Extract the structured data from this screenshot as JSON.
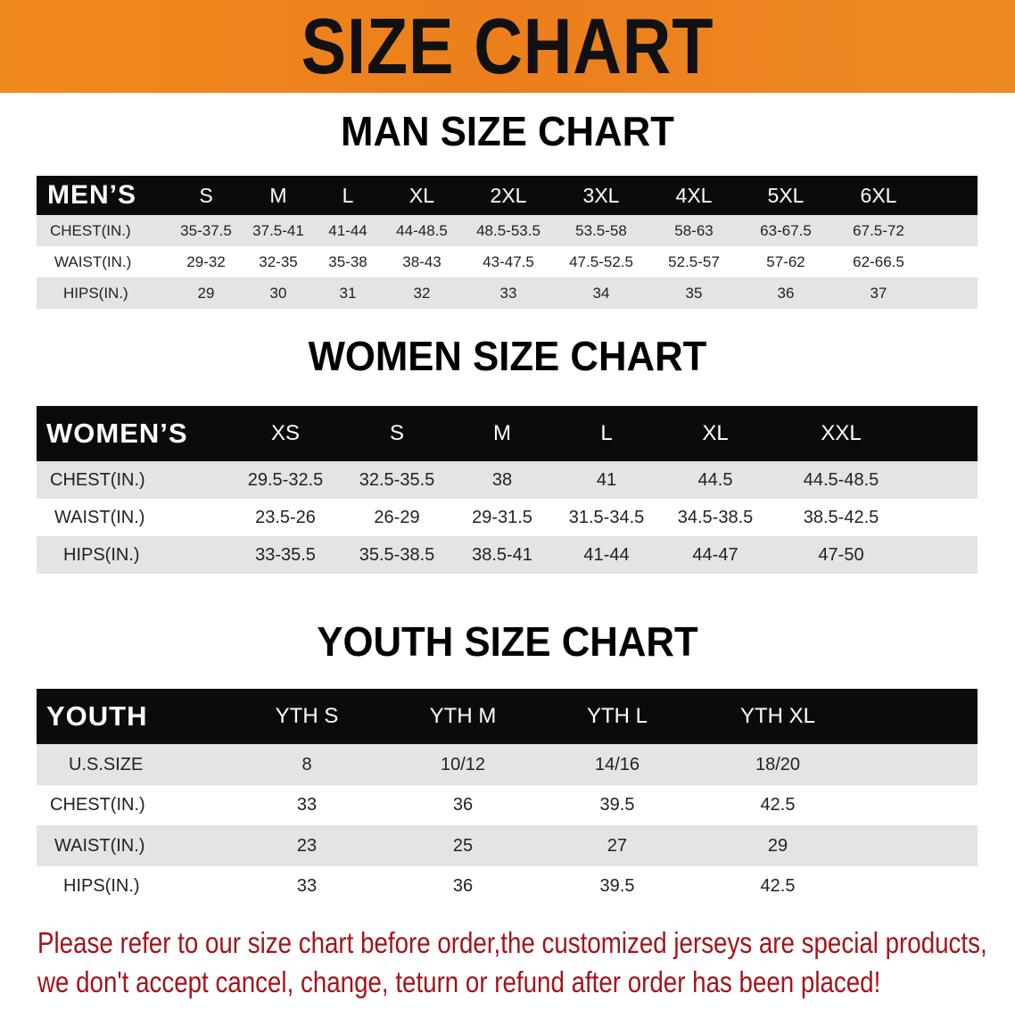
{
  "banner": {
    "title": "SIZE CHART",
    "color": "#ee841e"
  },
  "men": {
    "heading": "MAN SIZE CHART",
    "header": [
      "MEN’S",
      "S",
      "M",
      "L",
      "XL",
      "2XL",
      "3XL",
      "4XL",
      "5XL",
      "6XL"
    ],
    "rows": [
      [
        "CHEST(IN.)",
        "35-37.5",
        "37.5-41",
        "41-44",
        "44-48.5",
        "48.5-53.5",
        "53.5-58",
        "58-63",
        "63-67.5",
        "67.5-72"
      ],
      [
        "WAIST(IN.)",
        "29-32",
        "32-35",
        "35-38",
        "38-43",
        "43-47.5",
        "47.5-52.5",
        "52.5-57",
        "57-62",
        "62-66.5"
      ],
      [
        "HIPS(IN.)",
        "29",
        "30",
        "31",
        "32",
        "33",
        "34",
        "35",
        "36",
        "37"
      ]
    ]
  },
  "women": {
    "heading": "WOMEN SIZE CHART",
    "header": [
      "WOMEN’S",
      "XS",
      "S",
      "M",
      "L",
      "XL",
      "XXL"
    ],
    "rows": [
      [
        "CHEST(IN.)",
        "29.5-32.5",
        "32.5-35.5",
        "38",
        "41",
        "44.5",
        "44.5-48.5"
      ],
      [
        "WAIST(IN.)",
        "23.5-26",
        "26-29",
        "29-31.5",
        "31.5-34.5",
        "34.5-38.5",
        "38.5-42.5"
      ],
      [
        "HIPS(IN.)",
        "33-35.5",
        "35.5-38.5",
        "38.5-41",
        "41-44",
        "44-47",
        "47-50"
      ]
    ]
  },
  "youth": {
    "heading": "YOUTH SIZE CHART",
    "header": [
      "YOUTH",
      "YTH S",
      "YTH M",
      "YTH L",
      "YTH XL"
    ],
    "rows": [
      [
        "U.S.SIZE",
        "8",
        "10/12",
        "14/16",
        "18/20"
      ],
      [
        "CHEST(IN.)",
        "33",
        "36",
        "39.5",
        "42.5"
      ],
      [
        "WAIST(IN.)",
        "23",
        "25",
        "27",
        "29"
      ],
      [
        "HIPS(IN.)",
        "33",
        "36",
        "39.5",
        "42.5"
      ]
    ]
  },
  "notice": {
    "line1": "Please refer to our size chart before order,the customized jerseys are special products,",
    "line2": "we don't accept cancel, change, teturn or refund after order has been placed!",
    "color": "#a3141a"
  }
}
